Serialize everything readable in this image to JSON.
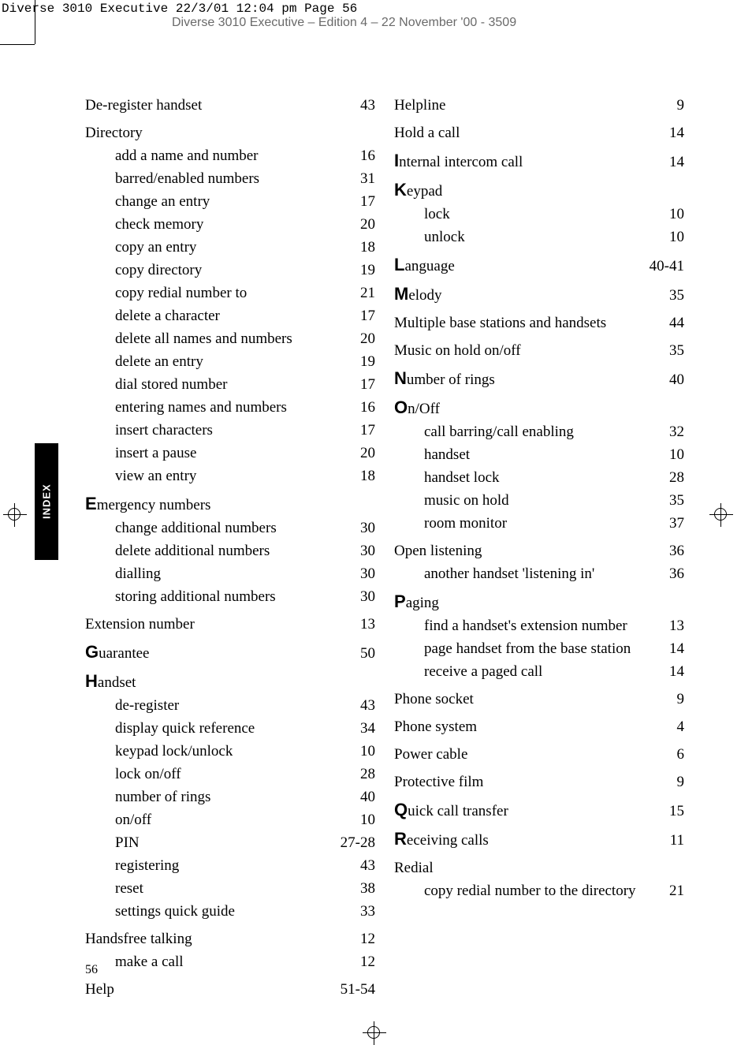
{
  "print_info": "Diverse 3010 Executive  22/3/01  12:04 pm  Page 56",
  "doc_header": "Diverse 3010 Executive – Edition 4 – 22 November '00 - 3509",
  "side_tab": "INDEX",
  "page_number": "56",
  "left_col": [
    {
      "type": "header",
      "label": "De-register handset",
      "page": "43"
    },
    {
      "type": "header",
      "label": "Directory",
      "page": ""
    },
    {
      "type": "sub",
      "label": "add a name and number",
      "page": "16"
    },
    {
      "type": "sub",
      "label": "barred/enabled numbers",
      "page": "31"
    },
    {
      "type": "sub",
      "label": "change an entry",
      "page": "17"
    },
    {
      "type": "sub",
      "label": "check memory",
      "page": "20"
    },
    {
      "type": "sub",
      "label": "copy an entry",
      "page": "18"
    },
    {
      "type": "sub",
      "label": "copy directory",
      "page": "19"
    },
    {
      "type": "sub",
      "label": "copy redial number to",
      "page": "21"
    },
    {
      "type": "sub",
      "label": "delete a character",
      "page": "17"
    },
    {
      "type": "sub",
      "label": "delete all names and numbers",
      "page": "20"
    },
    {
      "type": "sub",
      "label": "delete an entry",
      "page": "19"
    },
    {
      "type": "sub",
      "label": "dial stored number",
      "page": "17"
    },
    {
      "type": "sub",
      "label": "entering names and numbers",
      "page": "16"
    },
    {
      "type": "sub",
      "label": "insert characters",
      "page": "17"
    },
    {
      "type": "sub",
      "label": "insert a pause",
      "page": "20"
    },
    {
      "type": "sub",
      "label": "view an entry",
      "page": "18"
    },
    {
      "type": "header",
      "bold": "E",
      "label": "mergency numbers",
      "page": ""
    },
    {
      "type": "sub",
      "label": "change additional numbers",
      "page": "30"
    },
    {
      "type": "sub",
      "label": "delete additional numbers",
      "page": "30"
    },
    {
      "type": "sub",
      "label": "dialling",
      "page": "30"
    },
    {
      "type": "sub",
      "label": "storing additional numbers",
      "page": "30"
    },
    {
      "type": "header",
      "label": "Extension number",
      "page": "13"
    },
    {
      "type": "header",
      "bold": "G",
      "label": "uarantee",
      "page": "50"
    },
    {
      "type": "header",
      "bold": "H",
      "label": "andset",
      "page": ""
    },
    {
      "type": "sub",
      "label": "de-register",
      "page": "43"
    },
    {
      "type": "sub",
      "label": "display quick reference",
      "page": "34"
    },
    {
      "type": "sub",
      "label": "keypad lock/unlock",
      "page": "10"
    },
    {
      "type": "sub",
      "label": "lock on/off",
      "page": "28"
    },
    {
      "type": "sub",
      "label": "number of rings",
      "page": "40"
    },
    {
      "type": "sub",
      "label": "on/off",
      "page": "10"
    },
    {
      "type": "sub",
      "label": "PIN",
      "page": "27-28"
    },
    {
      "type": "sub",
      "label": "registering",
      "page": "43"
    },
    {
      "type": "sub",
      "label": "reset",
      "page": "38"
    },
    {
      "type": "sub",
      "label": "settings quick guide",
      "page": "33"
    },
    {
      "type": "header",
      "label": "Handsfree talking",
      "page": "12"
    },
    {
      "type": "sub",
      "label": "make a call",
      "page": "12"
    },
    {
      "type": "header",
      "label": "Help",
      "page": "51-54"
    }
  ],
  "right_col": [
    {
      "type": "header",
      "label": "Helpline",
      "page": "9"
    },
    {
      "type": "header",
      "label": "Hold a call",
      "page": "14"
    },
    {
      "type": "header",
      "bold": "I",
      "label": "nternal intercom call",
      "page": "14"
    },
    {
      "type": "header",
      "bold": "K",
      "label": "eypad",
      "page": ""
    },
    {
      "type": "sub",
      "label": "lock",
      "page": "10"
    },
    {
      "type": "sub",
      "label": "unlock",
      "page": "10"
    },
    {
      "type": "header",
      "bold": "L",
      "label": "anguage",
      "page": "40-41"
    },
    {
      "type": "header",
      "bold": "M",
      "label": "elody",
      "page": "35"
    },
    {
      "type": "header",
      "label": "Multiple base stations and handsets",
      "page": "44"
    },
    {
      "type": "header",
      "label": "Music on hold on/off",
      "page": "35"
    },
    {
      "type": "header",
      "bold": "N",
      "label": "umber of rings",
      "page": "40"
    },
    {
      "type": "header",
      "bold": "O",
      "label": "n/Off",
      "page": ""
    },
    {
      "type": "sub",
      "label": "call barring/call enabling",
      "page": "32"
    },
    {
      "type": "sub",
      "label": "handset",
      "page": "10"
    },
    {
      "type": "sub",
      "label": "handset lock",
      "page": "28"
    },
    {
      "type": "sub",
      "label": "music on hold",
      "page": "35"
    },
    {
      "type": "sub",
      "label": "room monitor",
      "page": "37"
    },
    {
      "type": "header",
      "label": "Open listening",
      "page": "36"
    },
    {
      "type": "sub",
      "label": "another handset 'listening in'",
      "page": "36"
    },
    {
      "type": "header",
      "bold": "P",
      "label": "aging",
      "page": ""
    },
    {
      "type": "sub",
      "label": "find a handset's extension number",
      "page": "13"
    },
    {
      "type": "sub",
      "label": "page handset from the base station",
      "page": "14"
    },
    {
      "type": "sub",
      "label": "receive a paged call",
      "page": "14"
    },
    {
      "type": "header",
      "label": "Phone socket",
      "page": "9"
    },
    {
      "type": "header",
      "label": "Phone system",
      "page": "4"
    },
    {
      "type": "header",
      "label": "Power cable",
      "page": "6"
    },
    {
      "type": "header",
      "label": "Protective film",
      "page": "9"
    },
    {
      "type": "header",
      "bold": "Q",
      "label": "uick call transfer",
      "page": "15"
    },
    {
      "type": "header",
      "bold": "R",
      "label": "eceiving calls",
      "page": "11"
    },
    {
      "type": "header",
      "label": "Redial",
      "page": ""
    },
    {
      "type": "sub",
      "label": "copy redial number to the directory",
      "page": "21"
    }
  ]
}
